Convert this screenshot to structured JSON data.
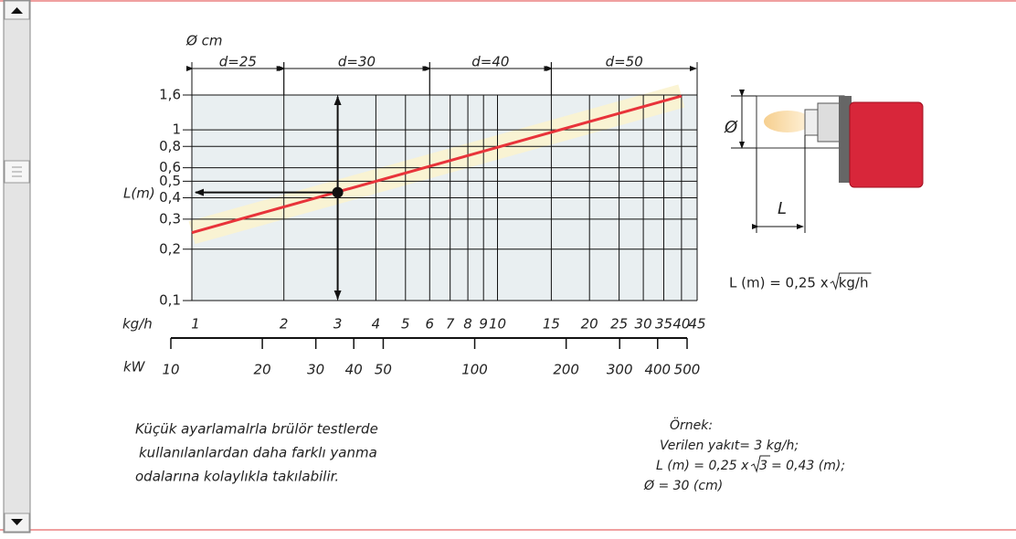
{
  "chart_data": {
    "type": "line",
    "top_label": "Ø cm",
    "x_label": "kg/h",
    "y_label": "L(m)",
    "xscale": "log",
    "yscale": "log",
    "xlim": [
      1,
      45
    ],
    "ylim": [
      0.1,
      1.6
    ],
    "xticks": [
      1,
      2,
      3,
      4,
      5,
      6,
      7,
      8,
      9,
      10,
      15,
      20,
      25,
      30,
      35,
      40,
      45
    ],
    "yticks": [
      {
        "value": 0.1,
        "label": "0,1"
      },
      {
        "value": 0.2,
        "label": "0,2"
      },
      {
        "value": 0.3,
        "label": "0,3"
      },
      {
        "value": 0.4,
        "label": "0,4"
      },
      {
        "value": 0.5,
        "label": "0,5"
      },
      {
        "value": 0.6,
        "label": "0,6"
      },
      {
        "value": 0.8,
        "label": "0,8"
      },
      1,
      {
        "value": 1.6,
        "label": "1,6"
      }
    ],
    "grid": true,
    "series": [
      {
        "color": "#e8333a",
        "x": [
          1,
          40
        ],
        "values": [
          0.25,
          1.58
        ]
      }
    ],
    "example_point": {
      "x": 3,
      "y": 0.43
    },
    "bands": [
      {
        "label": "d=25",
        "from": 1,
        "to": 2
      },
      {
        "label": "d=30",
        "from": 2,
        "to": 6
      },
      {
        "label": "d=40",
        "from": 6,
        "to": 15
      },
      {
        "label": "d=50",
        "from": 15,
        "to": 45
      }
    ],
    "x2_label": "kW",
    "x2lim": [
      10,
      500
    ],
    "x2ticks": [
      10,
      20,
      30,
      40,
      50,
      100,
      200,
      300,
      400,
      500
    ]
  },
  "diagram": {
    "diameter_label": "Ø",
    "length_label": "L",
    "formula": "L (m) = 0,25 x",
    "formula_radicand": "kg/h"
  },
  "note": {
    "lines": [
      "Küçük ayarlamalrla brülör testlerde",
      "kullanılanlardan daha farklı yanma",
      "odalarına kolaylıkla takılabilir."
    ]
  },
  "example": {
    "title": "Örnek:",
    "line1": "Verilen yakıt= 3 kg/h;",
    "line2_before": "L (m) = 0,25 x",
    "line2_radicand": "3",
    "line2_after": "= 0,43 (m);",
    "line3": "Ø = 30 (cm)"
  }
}
